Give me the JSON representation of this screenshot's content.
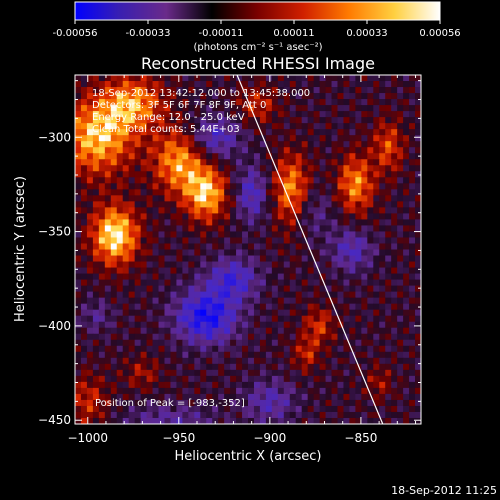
{
  "colorbar": {
    "ticks": [
      "-0.00056",
      "-0.00033",
      "-0.00011",
      "0.00011",
      "0.00033",
      "0.00056"
    ],
    "units": "(photons cm⁻² s⁻¹ asec⁻²)",
    "stops": [
      "#0000ff",
      "#3a1fb0",
      "#6a2a8a",
      "#000000",
      "#7a0000",
      "#d02000",
      "#ff7a00",
      "#ffd040",
      "#ffffff"
    ]
  },
  "title": "Reconstructed RHESSI Image",
  "info": {
    "time": "18-Sep-2012 13:42:12.000 to 13:45:38.000",
    "detectors": "Detectors: 3F 5F 6F 7F 8F 9F, Att 0",
    "energy": "Energy Range: 12.0 - 25.0 keV",
    "clean": "Clean     Total counts: 5.44E+03"
  },
  "peak_label": "Position of Peak = [-983,-352]",
  "footer_timestamp": "18-Sep-2012 11:25",
  "chart_data": {
    "type": "heatmap",
    "title": "Reconstructed RHESSI Image",
    "xlabel": "Heliocentric X (arcsec)",
    "ylabel": "Heliocentric Y (arcsec)",
    "xlim": [
      -1007,
      -817
    ],
    "ylim": [
      -452,
      -267
    ],
    "x_ticks": [
      -1000,
      -950,
      -900,
      -850
    ],
    "x_tick_labels": [
      "−1000",
      "−950",
      "−900",
      "−850"
    ],
    "y_ticks": [
      -300,
      -350,
      -400,
      -450
    ],
    "y_tick_labels": [
      "−300",
      "−350",
      "−400",
      "−450"
    ],
    "colorbar_range": [
      -0.00056,
      0.00056
    ],
    "peak": [
      -983,
      -352
    ],
    "limb_line": [
      [
        -918,
        -267
      ],
      [
        -838,
        -452
      ]
    ],
    "sources": [
      {
        "x": -985,
        "y": -352,
        "sx": 9,
        "sy": 11,
        "amp": 1.0
      },
      {
        "x": -995,
        "y": -300,
        "sx": 14,
        "sy": 14,
        "amp": 0.85
      },
      {
        "x": -975,
        "y": -282,
        "sx": 12,
        "sy": 10,
        "amp": 0.7
      },
      {
        "x": -950,
        "y": -313,
        "sx": 10,
        "sy": 12,
        "amp": 0.75
      },
      {
        "x": -935,
        "y": -330,
        "sx": 8,
        "sy": 10,
        "amp": 0.85
      },
      {
        "x": -888,
        "y": -330,
        "sx": 7,
        "sy": 14,
        "amp": 0.8
      },
      {
        "x": -853,
        "y": -325,
        "sx": 7,
        "sy": 11,
        "amp": 0.7
      },
      {
        "x": -835,
        "y": -305,
        "sx": 6,
        "sy": 10,
        "amp": 0.5
      },
      {
        "x": -1000,
        "y": -440,
        "sx": 8,
        "sy": 10,
        "amp": 0.4
      },
      {
        "x": -873,
        "y": -400,
        "sx": 6,
        "sy": 7,
        "amp": 0.45
      },
      {
        "x": -880,
        "y": -415,
        "sx": 5,
        "sy": 6,
        "amp": 0.4
      },
      {
        "x": -907,
        "y": -283,
        "sx": 8,
        "sy": 7,
        "amp": 0.4
      },
      {
        "x": -970,
        "y": -425,
        "sx": 7,
        "sy": 6,
        "amp": 0.3
      },
      {
        "x": -840,
        "y": -430,
        "sx": 5,
        "sy": 6,
        "amp": 0.3
      },
      {
        "x": -930,
        "y": -300,
        "sx": 10,
        "sy": 8,
        "amp": -0.55
      },
      {
        "x": -880,
        "y": -340,
        "sx": 10,
        "sy": 10,
        "amp": -0.35
      },
      {
        "x": -920,
        "y": -375,
        "sx": 10,
        "sy": 8,
        "amp": -0.6
      },
      {
        "x": -935,
        "y": -395,
        "sx": 12,
        "sy": 10,
        "amp": -0.85
      },
      {
        "x": -855,
        "y": -360,
        "sx": 8,
        "sy": 8,
        "amp": -0.5
      },
      {
        "x": -955,
        "y": -450,
        "sx": 18,
        "sy": 6,
        "amp": -0.35
      },
      {
        "x": -900,
        "y": -440,
        "sx": 10,
        "sy": 8,
        "amp": -0.45
      },
      {
        "x": -910,
        "y": -330,
        "sx": 6,
        "sy": 10,
        "amp": -0.55
      },
      {
        "x": -995,
        "y": -395,
        "sx": 6,
        "sy": 6,
        "amp": -0.3
      }
    ]
  }
}
